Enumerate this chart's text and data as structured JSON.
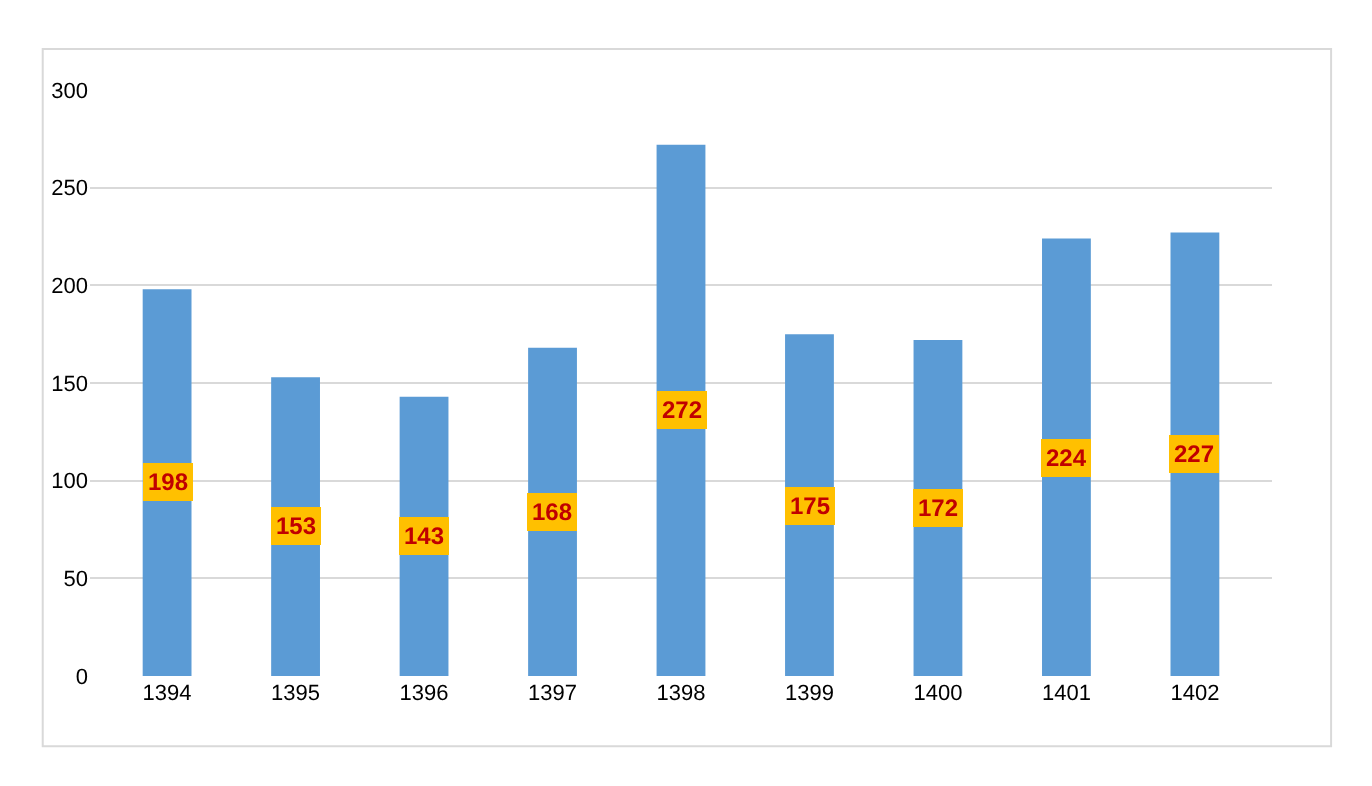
{
  "chart_data": {
    "type": "bar",
    "categories": [
      "1394",
      "1395",
      "1396",
      "1397",
      "1398",
      "1399",
      "1400",
      "1401",
      "1402"
    ],
    "values": [
      198,
      153,
      143,
      168,
      272,
      175,
      172,
      224,
      227
    ],
    "color": "#5b9bd5",
    "ylim": [
      0,
      300
    ],
    "yticks": [
      0,
      50,
      100,
      150,
      200,
      250,
      300
    ],
    "grid": "y",
    "data_labels": true
  }
}
